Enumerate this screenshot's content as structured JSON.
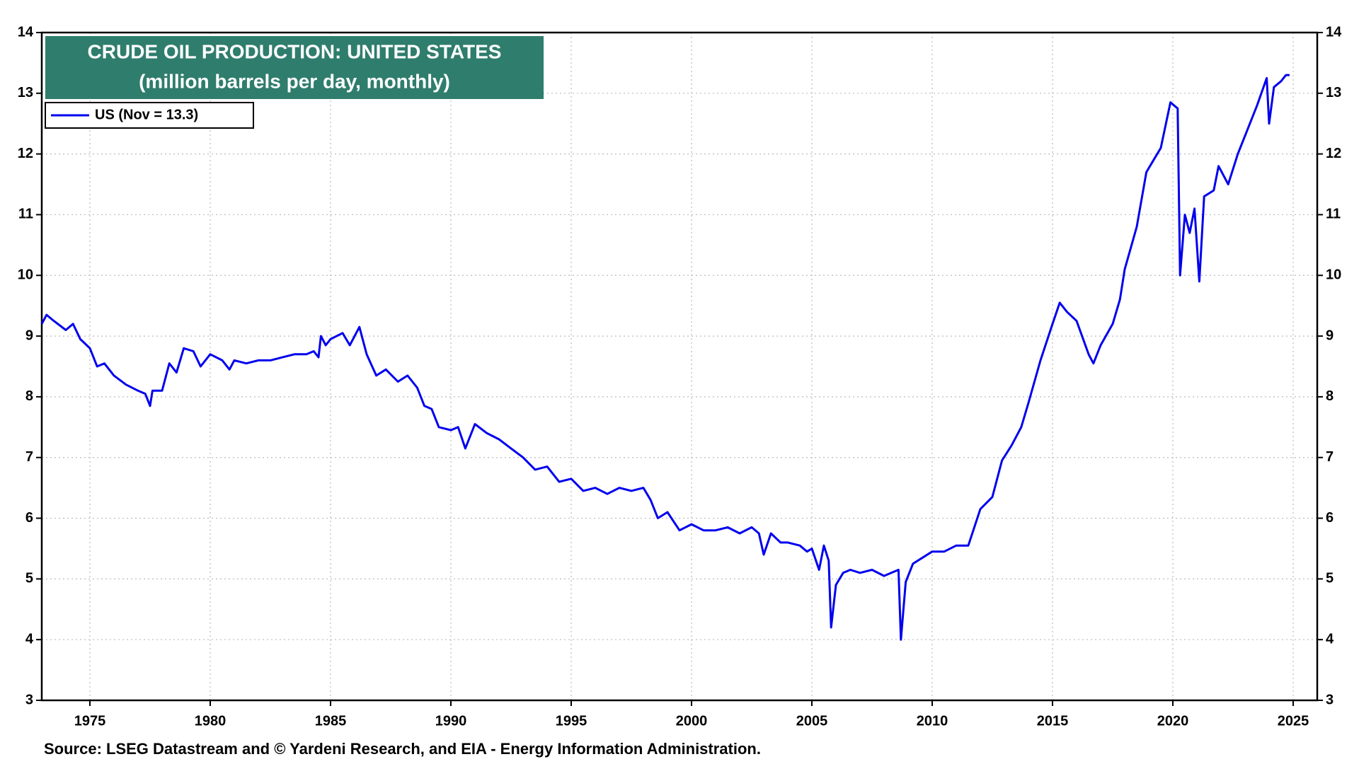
{
  "chart_data": {
    "type": "line",
    "title": "CRUDE OIL PRODUCTION: UNITED STATES",
    "subtitle": "(million barrels per day, monthly)",
    "source": "Source: LSEG Datastream and © Yardeni Research, and EIA - Energy Information Administration.",
    "x": [
      1973.0,
      1973.2,
      1973.5,
      1974.0,
      1974.3,
      1974.6,
      1975.0,
      1975.3,
      1975.6,
      1976.0,
      1976.5,
      1977.0,
      1977.3,
      1977.5,
      1977.6,
      1978.0,
      1978.3,
      1978.6,
      1978.9,
      1979.3,
      1979.6,
      1980.0,
      1980.5,
      1980.8,
      1981.0,
      1981.5,
      1982.0,
      1982.5,
      1983.0,
      1983.5,
      1984.0,
      1984.3,
      1984.5,
      1984.6,
      1984.8,
      1985.0,
      1985.5,
      1985.8,
      1986.2,
      1986.5,
      1986.9,
      1987.3,
      1987.8,
      1988.2,
      1988.6,
      1988.9,
      1989.2,
      1989.5,
      1990.0,
      1990.3,
      1990.6,
      1991.0,
      1991.5,
      1992.0,
      1992.5,
      1993.0,
      1993.5,
      1994.0,
      1994.5,
      1995.0,
      1995.5,
      1996.0,
      1996.5,
      1997.0,
      1997.5,
      1998.0,
      1998.3,
      1998.6,
      1999.0,
      1999.5,
      2000.0,
      2000.5,
      2001.0,
      2001.5,
      2002.0,
      2002.5,
      2002.8,
      2003.0,
      2003.3,
      2003.7,
      2004.0,
      2004.5,
      2004.8,
      2005.0,
      2005.3,
      2005.5,
      2005.7,
      2005.8,
      2006.0,
      2006.3,
      2006.6,
      2007.0,
      2007.5,
      2008.0,
      2008.3,
      2008.6,
      2008.7,
      2008.9,
      2009.2,
      2009.6,
      2010.0,
      2010.5,
      2011.0,
      2011.5,
      2012.0,
      2012.5,
      2012.9,
      2013.3,
      2013.7,
      2014.0,
      2014.5,
      2015.0,
      2015.3,
      2015.6,
      2016.0,
      2016.5,
      2016.7,
      2017.0,
      2017.5,
      2017.8,
      2018.0,
      2018.5,
      2018.9,
      2019.2,
      2019.5,
      2019.9,
      2020.2,
      2020.3,
      2020.5,
      2020.7,
      2020.9,
      2021.1,
      2021.3,
      2021.7,
      2021.9,
      2022.3,
      2022.7,
      2023.0,
      2023.5,
      2023.9,
      2024.0,
      2024.2,
      2024.5,
      2024.7,
      2024.85
    ],
    "series": [
      {
        "name": "US (Nov = 13.3)",
        "color": "#0000ee",
        "values": [
          9.2,
          9.35,
          9.25,
          9.1,
          9.2,
          8.95,
          8.8,
          8.5,
          8.55,
          8.35,
          8.2,
          8.1,
          8.05,
          7.85,
          8.1,
          8.1,
          8.55,
          8.4,
          8.8,
          8.75,
          8.5,
          8.7,
          8.6,
          8.45,
          8.6,
          8.55,
          8.6,
          8.6,
          8.65,
          8.7,
          8.7,
          8.75,
          8.65,
          9.0,
          8.85,
          8.95,
          9.05,
          8.85,
          9.15,
          8.7,
          8.35,
          8.45,
          8.25,
          8.35,
          8.15,
          7.85,
          7.8,
          7.5,
          7.45,
          7.5,
          7.15,
          7.55,
          7.4,
          7.3,
          7.15,
          7.0,
          6.8,
          6.85,
          6.6,
          6.65,
          6.45,
          6.5,
          6.4,
          6.5,
          6.45,
          6.5,
          6.3,
          6.0,
          6.1,
          5.8,
          5.9,
          5.8,
          5.8,
          5.85,
          5.75,
          5.85,
          5.75,
          5.4,
          5.75,
          5.6,
          5.6,
          5.55,
          5.45,
          5.5,
          5.15,
          5.55,
          5.3,
          4.2,
          4.9,
          5.1,
          5.15,
          5.1,
          5.15,
          5.05,
          5.1,
          5.15,
          4.0,
          4.95,
          5.25,
          5.35,
          5.45,
          5.45,
          5.55,
          5.55,
          6.15,
          6.35,
          6.95,
          7.2,
          7.5,
          7.9,
          8.6,
          9.2,
          9.55,
          9.4,
          9.25,
          8.7,
          8.55,
          8.85,
          9.2,
          9.6,
          10.1,
          10.8,
          11.7,
          11.9,
          12.1,
          12.85,
          12.75,
          10.0,
          11.0,
          10.7,
          11.1,
          9.9,
          11.3,
          11.4,
          11.8,
          11.5,
          12.0,
          12.3,
          12.8,
          13.25,
          12.5,
          13.1,
          13.2,
          13.3,
          13.3
        ]
      }
    ],
    "xlim": [
      1973,
      2026
    ],
    "xticks": [
      1975,
      1980,
      1985,
      1990,
      1995,
      2000,
      2005,
      2010,
      2015,
      2020,
      2025
    ],
    "ylim": [
      3,
      14
    ],
    "yticks": [
      3,
      4,
      5,
      6,
      7,
      8,
      9,
      10,
      11,
      12,
      13,
      14
    ],
    "grid": true
  }
}
